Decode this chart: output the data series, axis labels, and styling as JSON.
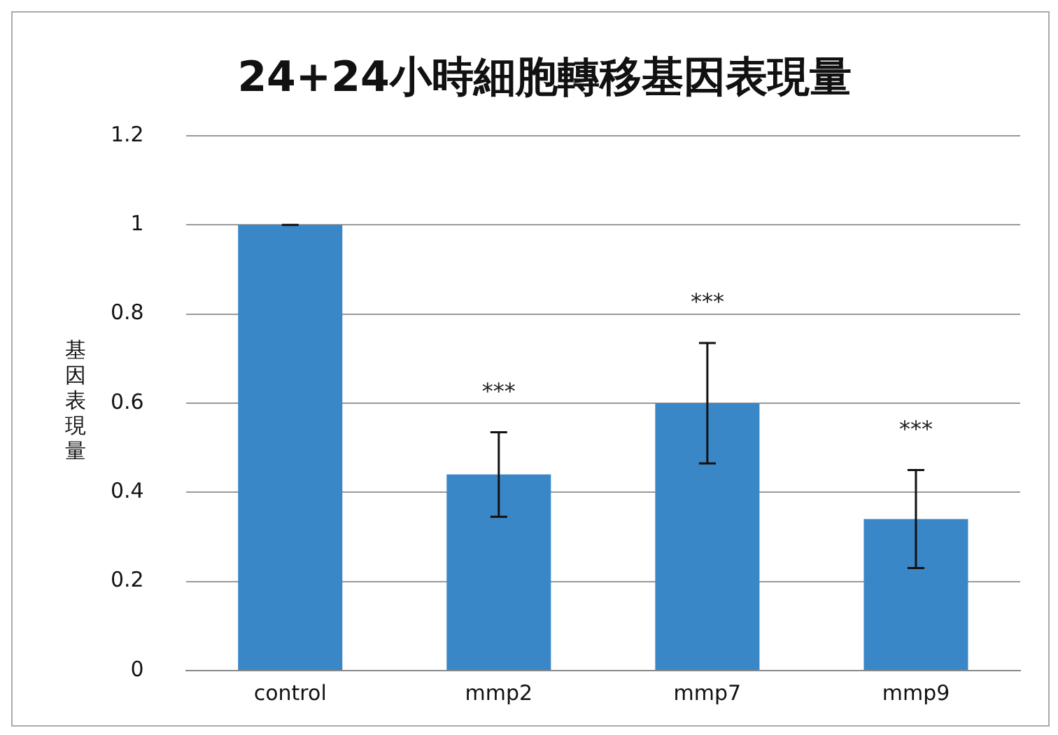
{
  "chart_data": {
    "type": "bar",
    "title": "24+24小時細胞轉移基因表現量",
    "ylabel": "基因表現量",
    "categories": [
      "control",
      "mmp2",
      "mmp7",
      "mmp9"
    ],
    "values": [
      1,
      0.44,
      0.6,
      0.34
    ],
    "color": "#3a87c8",
    "errors": [
      0,
      0.095,
      0.135,
      0.11
    ],
    "ylim": [
      0,
      1.2
    ],
    "yticks": [
      0,
      0.2,
      0.4,
      0.6,
      0.8,
      1,
      1.2
    ],
    "grid": "y",
    "annotations": [
      "***",
      "***",
      "***"
    ]
  }
}
